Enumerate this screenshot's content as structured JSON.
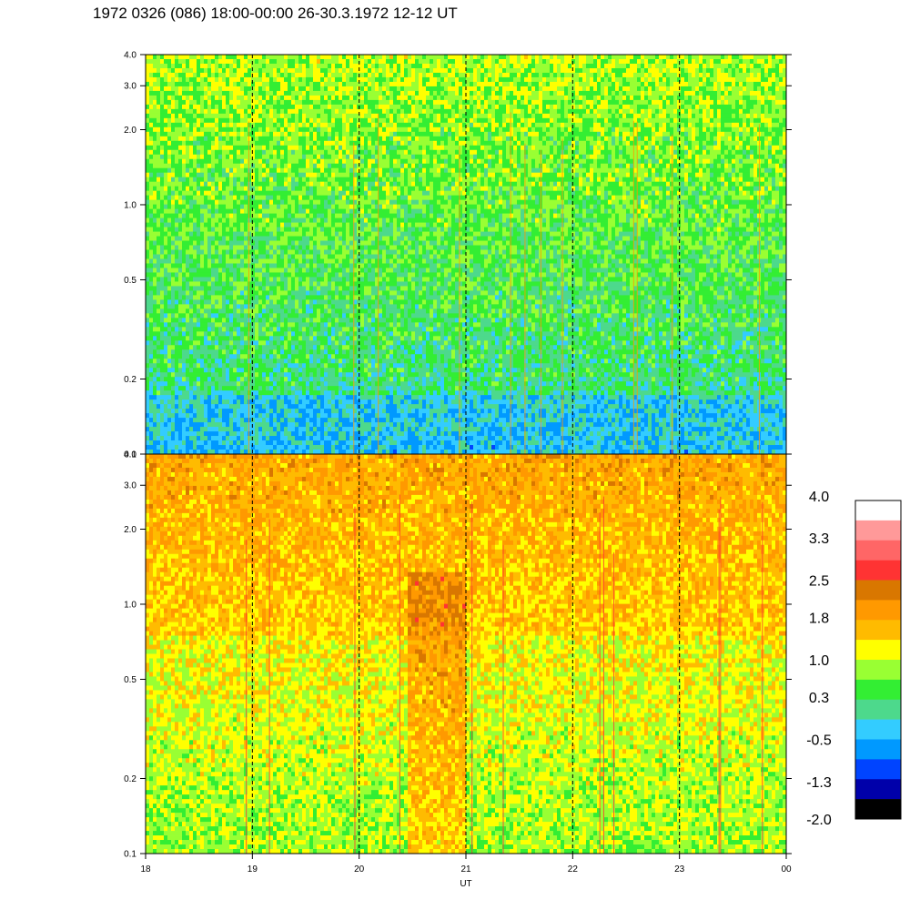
{
  "title": "1972 0326 (086) 18:00-00:00 26-30.3.1972  12-12 UT",
  "chart_data": {
    "type": "heatmap",
    "xlabel": "UT",
    "x_ticks": [
      "18",
      "19",
      "20",
      "21",
      "22",
      "23",
      "00"
    ],
    "x_tick_hours": [
      18,
      19,
      20,
      21,
      22,
      23,
      24
    ],
    "x_range": [
      18,
      24
    ],
    "dashed_gridlines_at_hours": [
      19,
      20,
      21,
      22,
      23
    ],
    "y_scale": "log",
    "y_range": [
      0.1,
      4.0
    ],
    "y_ticks": [
      "4.0",
      "3.0",
      "2.0",
      "1.0",
      "0.5",
      "0.2",
      "0.1"
    ],
    "y_tick_values": [
      4.0,
      3.0,
      2.0,
      1.0,
      0.5,
      0.2,
      0.1
    ],
    "panels": [
      {
        "name": "upper",
        "dominant_levels": "green / cyan, 0.3 to 1.0, with lower values near 0.1"
      },
      {
        "name": "lower",
        "dominant_levels": "yellow / orange, 1.0 to 1.8, with higher values near 20:30-21:00"
      }
    ],
    "colorbar": {
      "labels": [
        "4.0",
        "3.3",
        "2.5",
        "1.8",
        "1.0",
        "0.3",
        "-0.5",
        "-1.3",
        "-2.0"
      ],
      "label_values": [
        4.0,
        3.3,
        2.5,
        1.8,
        1.0,
        0.3,
        -0.5,
        -1.3,
        -2.0
      ],
      "range": [
        -2.0,
        4.0
      ],
      "colors_top_to_bottom": [
        "#ffffff",
        "#ff9999",
        "#ff6666",
        "#ff3333",
        "#d97700",
        "#ff9900",
        "#ffbb00",
        "#ffff00",
        "#99ff33",
        "#33ee33",
        "#4dd98c",
        "#33ccff",
        "#0099ff",
        "#0044ff",
        "#0000aa",
        "#000000"
      ]
    }
  }
}
